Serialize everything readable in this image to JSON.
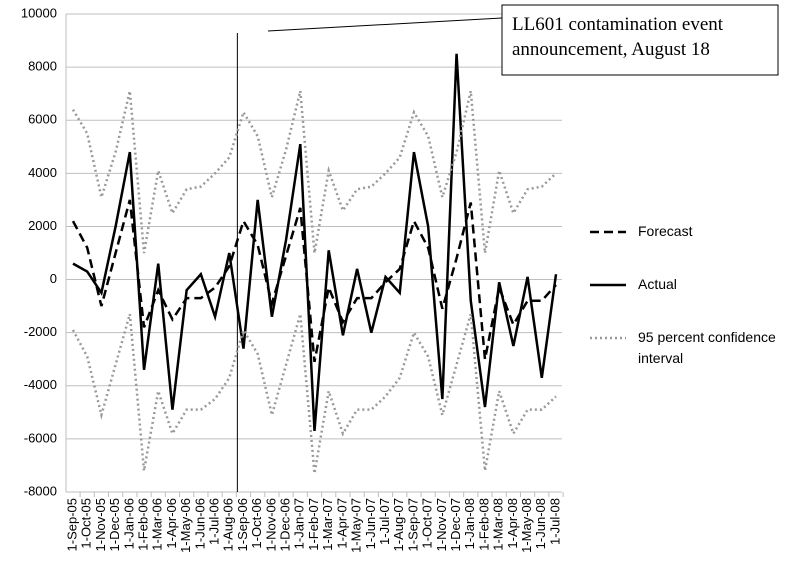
{
  "chart_data": {
    "type": "line",
    "categories": [
      "1-Sep-05",
      "1-Oct-05",
      "1-Nov-05",
      "1-Dec-05",
      "1-Jan-06",
      "1-Feb-06",
      "1-Mar-06",
      "1-Apr-06",
      "1-May-06",
      "1-Jun-06",
      "1-Jul-06",
      "1-Aug-06",
      "1-Sep-06",
      "1-Oct-06",
      "1-Nov-06",
      "1-Dec-06",
      "1-Jan-07",
      "1-Feb-07",
      "1-Mar-07",
      "1-Apr-07",
      "1-May-07",
      "1-Jun-07",
      "1-Jul-07",
      "1-Aug-07",
      "1-Sep-07",
      "1-Oct-07",
      "1-Nov-07",
      "1-Dec-07",
      "1-Jan-08",
      "1-Feb-08",
      "1-Mar-08",
      "1-Apr-08",
      "1-May-08",
      "1-Jun-08",
      "1-Jul-08"
    ],
    "series": [
      {
        "name": "Forecast",
        "color": "#000000",
        "dash": "dashed",
        "values": [
          2200,
          1200,
          -1000,
          1000,
          3000,
          -1800,
          -400,
          -1500,
          -700,
          -700,
          -300,
          500,
          2200,
          1300,
          -900,
          900,
          2700,
          -3100,
          -300,
          -1600,
          -700,
          -700,
          -100,
          400,
          2200,
          1200,
          -1100,
          800,
          2900,
          -3000,
          -300,
          -1700,
          -800,
          -800,
          -200
        ]
      },
      {
        "name": "Actual",
        "color": "#000000",
        "dash": "solid",
        "values": [
          600,
          300,
          -500,
          2000,
          4800,
          -3400,
          600,
          -4900,
          -400,
          200,
          -1400,
          1000,
          -2600,
          3000,
          -1400,
          1500,
          5100,
          -5700,
          1100,
          -2100,
          400,
          -2000,
          100,
          -500,
          4800,
          2000,
          -4500,
          8500,
          -800,
          -4800,
          -100,
          -2500,
          100,
          -3700,
          200
        ]
      },
      {
        "name": "95 percent confidence interval",
        "color": "#999999",
        "dash": "dotted",
        "upper": [
          6400,
          5500,
          3100,
          4800,
          7100,
          1000,
          4100,
          2500,
          3400,
          3500,
          4000,
          4600,
          6300,
          5400,
          3100,
          4900,
          7100,
          1000,
          4100,
          2600,
          3400,
          3500,
          4000,
          4600,
          6300,
          5400,
          3100,
          4800,
          7100,
          1000,
          4100,
          2500,
          3400,
          3500,
          4000
        ],
        "lower": [
          -1900,
          -2900,
          -5100,
          -3200,
          -1300,
          -7200,
          -4200,
          -5800,
          -4900,
          -4900,
          -4500,
          -3700,
          -1900,
          -2800,
          -5100,
          -3200,
          -1300,
          -7300,
          -4200,
          -5800,
          -4900,
          -4900,
          -4400,
          -3700,
          -2000,
          -2900,
          -5100,
          -3200,
          -1300,
          -7200,
          -4200,
          -5800,
          -4900,
          -4900,
          -4400
        ]
      }
    ],
    "ylim": [
      -8000,
      10000
    ],
    "yticks": [
      -8000,
      -6000,
      -4000,
      -2000,
      0,
      2000,
      4000,
      6000,
      8000,
      10000
    ],
    "grid": true,
    "legend": "right",
    "annotation": "LL601 contamination event announcement, August 18"
  }
}
